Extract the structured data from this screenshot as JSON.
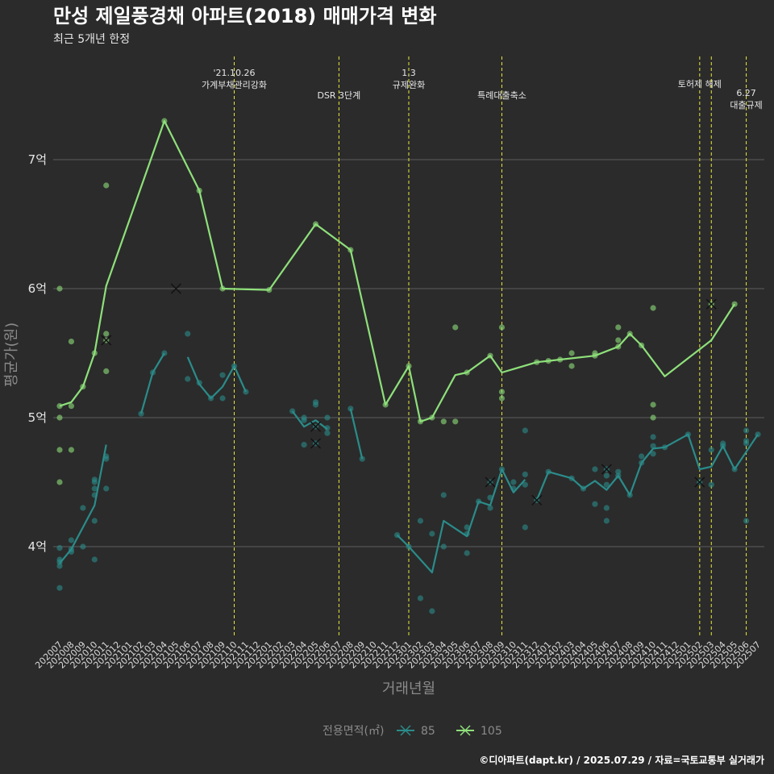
{
  "chart_data": {
    "type": "line",
    "title": "만성 제일풍경채 아파트(2018) 매매가격 변화",
    "subtitle": "최근 5개년 한정",
    "xlabel": "거래년월",
    "ylabel": "평균가(원)",
    "ylim": [
      3.3,
      7.8
    ],
    "yticks": [
      4,
      5,
      6,
      7
    ],
    "ytick_labels": [
      "4억",
      "5억",
      "6억",
      "7억"
    ],
    "categories": [
      "202007",
      "202008",
      "202009",
      "202010",
      "202011",
      "202012",
      "202101",
      "202102",
      "202103",
      "202104",
      "202105",
      "202106",
      "202107",
      "202108",
      "202109",
      "202110",
      "202111",
      "202112",
      "202201",
      "202202",
      "202203",
      "202204",
      "202205",
      "202206",
      "202207",
      "202208",
      "202209",
      "202210",
      "202211",
      "202212",
      "202301",
      "202302",
      "202303",
      "202304",
      "202305",
      "202306",
      "202307",
      "202308",
      "202309",
      "202310",
      "202311",
      "202312",
      "202401",
      "202402",
      "202403",
      "202404",
      "202405",
      "202406",
      "202407",
      "202408",
      "202409",
      "202410",
      "202411",
      "202412",
      "202501",
      "202502",
      "202503",
      "202504",
      "202505",
      "202506",
      "202507"
    ],
    "grid": true,
    "legend_title": "전용면적(㎡)",
    "legend_position": "bottom",
    "series": [
      {
        "name": "85",
        "color": "#2a8c8a",
        "segments": [
          [
            [
              "202007",
              3.87
            ],
            [
              "202008",
              3.98
            ],
            [
              "202009",
              4.15
            ],
            [
              "202010",
              4.32
            ],
            [
              "202011",
              4.79
            ]
          ],
          [
            [
              "202102",
              5.03
            ],
            [
              "202103",
              5.35
            ],
            [
              "202104",
              5.5
            ]
          ],
          [
            [
              "202106",
              5.47
            ],
            [
              "202107",
              5.26
            ],
            [
              "202108",
              5.15
            ],
            [
              "202109",
              5.24
            ],
            [
              "202110",
              5.4
            ],
            [
              "202111",
              5.2
            ]
          ],
          [
            [
              "202203",
              5.05
            ],
            [
              "202204",
              4.93
            ],
            [
              "202205",
              4.98
            ],
            [
              "202206",
              4.91
            ]
          ],
          [
            [
              "202208",
              5.07
            ],
            [
              "202209",
              4.68
            ]
          ],
          [
            [
              "202212",
              4.09
            ],
            [
              "202301",
              4.0
            ],
            [
              "202303",
              3.8
            ],
            [
              "202304",
              4.2
            ],
            [
              "202306",
              4.08
            ],
            [
              "202307",
              4.35
            ],
            [
              "202308",
              4.32
            ],
            [
              "202309",
              4.6
            ],
            [
              "202310",
              4.42
            ],
            [
              "202311",
              4.52
            ]
          ],
          [
            [
              "202312",
              4.36
            ],
            [
              "202401",
              4.58
            ],
            [
              "202403",
              4.53
            ],
            [
              "202404",
              4.45
            ],
            [
              "202405",
              4.51
            ],
            [
              "202406",
              4.44
            ],
            [
              "202407",
              4.55
            ],
            [
              "202408",
              4.4
            ],
            [
              "202409",
              4.65
            ],
            [
              "202410",
              4.76
            ],
            [
              "202411",
              4.77
            ],
            [
              "202501",
              4.87
            ],
            [
              "202502",
              4.6
            ],
            [
              "202503",
              4.62
            ],
            [
              "202504",
              4.78
            ],
            [
              "202505",
              4.6
            ],
            [
              "202507",
              4.87
            ]
          ]
        ],
        "points": [
          [
            "202007",
            3.85
          ],
          [
            "202007",
            3.88
          ],
          [
            "202007",
            3.9
          ],
          [
            "202007",
            3.68
          ],
          [
            "202007",
            3.99
          ],
          [
            "202008",
            3.96
          ],
          [
            "202008",
            3.98
          ],
          [
            "202008",
            4.05
          ],
          [
            "202009",
            4.3
          ],
          [
            "202009",
            4.0
          ],
          [
            "202010",
            4.45
          ],
          [
            "202010",
            4.5
          ],
          [
            "202010",
            4.4
          ],
          [
            "202010",
            4.52
          ],
          [
            "202010",
            4.2
          ],
          [
            "202010",
            3.9
          ],
          [
            "202011",
            4.68
          ],
          [
            "202011",
            4.45
          ],
          [
            "202011",
            4.7
          ],
          [
            "202102",
            5.03
          ],
          [
            "202103",
            5.35
          ],
          [
            "202104",
            5.5
          ],
          [
            "202106",
            5.65
          ],
          [
            "202106",
            5.3
          ],
          [
            "202107",
            5.27
          ],
          [
            "202108",
            5.15
          ],
          [
            "202109",
            5.15
          ],
          [
            "202109",
            5.33
          ],
          [
            "202110",
            5.4
          ],
          [
            "202111",
            5.2
          ],
          [
            "202203",
            5.05
          ],
          [
            "202204",
            4.79
          ],
          [
            "202204",
            5.0
          ],
          [
            "202204",
            4.98
          ],
          [
            "202205",
            5.1
          ],
          [
            "202205",
            5.12
          ],
          [
            "202205",
            4.8
          ],
          [
            "202205",
            4.93
          ],
          [
            "202206",
            4.88
          ],
          [
            "202206",
            5.0
          ],
          [
            "202206",
            4.92
          ],
          [
            "202208",
            5.07
          ],
          [
            "202209",
            4.68
          ],
          [
            "202212",
            4.09
          ],
          [
            "202301",
            4.0
          ],
          [
            "202302",
            3.6
          ],
          [
            "202302",
            4.2
          ],
          [
            "202303",
            3.5
          ],
          [
            "202303",
            4.1
          ],
          [
            "202304",
            4.0
          ],
          [
            "202304",
            4.4
          ],
          [
            "202306",
            4.1
          ],
          [
            "202306",
            4.15
          ],
          [
            "202306",
            3.95
          ],
          [
            "202307",
            4.35
          ],
          [
            "202308",
            4.3
          ],
          [
            "202308",
            4.38
          ],
          [
            "202308",
            4.5
          ],
          [
            "202309",
            4.6
          ],
          [
            "202310",
            4.45
          ],
          [
            "202310",
            4.5
          ],
          [
            "202311",
            4.15
          ],
          [
            "202311",
            4.9
          ],
          [
            "202311",
            4.56
          ],
          [
            "202311",
            4.48
          ],
          [
            "202312",
            4.36
          ],
          [
            "202401",
            4.58
          ],
          [
            "202403",
            4.53
          ],
          [
            "202404",
            4.45
          ],
          [
            "202405",
            4.6
          ],
          [
            "202405",
            4.33
          ],
          [
            "202406",
            4.6
          ],
          [
            "202406",
            4.3
          ],
          [
            "202406",
            4.55
          ],
          [
            "202406",
            4.2
          ],
          [
            "202406",
            4.48
          ],
          [
            "202407",
            4.58
          ],
          [
            "202407",
            4.55
          ],
          [
            "202408",
            4.4
          ],
          [
            "202409",
            4.65
          ],
          [
            "202409",
            4.7
          ],
          [
            "202410",
            4.78
          ],
          [
            "202410",
            4.72
          ],
          [
            "202410",
            4.85
          ],
          [
            "202411",
            4.77
          ],
          [
            "202501",
            4.87
          ],
          [
            "202502",
            4.5
          ],
          [
            "202503",
            4.48
          ],
          [
            "202503",
            4.75
          ],
          [
            "202504",
            4.78
          ],
          [
            "202504",
            4.8
          ],
          [
            "202505",
            4.6
          ],
          [
            "202506",
            4.2
          ],
          [
            "202506",
            4.9
          ],
          [
            "202506",
            4.8
          ],
          [
            "202506",
            4.82
          ],
          [
            "202507",
            4.87
          ]
        ],
        "x_marks": [
          [
            "202205",
            4.93
          ],
          [
            "202205",
            4.8
          ],
          [
            "202308",
            4.5
          ],
          [
            "202312",
            4.36
          ],
          [
            "202406",
            4.6
          ],
          [
            "202502",
            4.5
          ]
        ]
      },
      {
        "name": "105",
        "color": "#8ee07a",
        "segments": [
          [
            [
              "202007",
              5.09
            ],
            [
              "202008",
              5.12
            ],
            [
              "202009",
              5.24
            ],
            [
              "202010",
              5.5
            ],
            [
              "202011",
              6.02
            ],
            [
              "202104",
              7.3
            ],
            [
              "202107",
              6.76
            ],
            [
              "202109",
              6.0
            ],
            [
              "202201",
              5.99
            ],
            [
              "202205",
              6.5
            ],
            [
              "202208",
              6.3
            ],
            [
              "202211",
              5.1
            ],
            [
              "202301",
              5.4
            ],
            [
              "202302",
              4.97
            ],
            [
              "202303",
              5.0
            ],
            [
              "202305",
              5.33
            ],
            [
              "202306",
              5.35
            ],
            [
              "202308",
              5.48
            ],
            [
              "202309",
              5.35
            ],
            [
              "202312",
              5.43
            ],
            [
              "202401",
              5.44
            ],
            [
              "202402",
              5.45
            ],
            [
              "202405",
              5.48
            ],
            [
              "202407",
              5.55
            ],
            [
              "202408",
              5.65
            ],
            [
              "202409",
              5.56
            ],
            [
              "202411",
              5.32
            ],
            [
              "202503",
              5.6
            ],
            [
              "202505",
              5.88
            ]
          ]
        ],
        "points": [
          [
            "202007",
            6.0
          ],
          [
            "202007",
            5.09
          ],
          [
            "202007",
            5.0
          ],
          [
            "202007",
            4.75
          ],
          [
            "202007",
            4.5
          ],
          [
            "202008",
            5.59
          ],
          [
            "202008",
            5.09
          ],
          [
            "202008",
            4.75
          ],
          [
            "202009",
            5.24
          ],
          [
            "202010",
            5.5
          ],
          [
            "202011",
            6.8
          ],
          [
            "202011",
            5.65
          ],
          [
            "202011",
            5.6
          ],
          [
            "202011",
            5.36
          ],
          [
            "202104",
            7.3
          ],
          [
            "202107",
            6.76
          ],
          [
            "202109",
            6.0
          ],
          [
            "202201",
            5.99
          ],
          [
            "202205",
            6.5
          ],
          [
            "202208",
            6.3
          ],
          [
            "202211",
            5.1
          ],
          [
            "202301",
            5.4
          ],
          [
            "202302",
            4.97
          ],
          [
            "202303",
            5.0
          ],
          [
            "202304",
            4.97
          ],
          [
            "202305",
            5.7
          ],
          [
            "202305",
            4.97
          ],
          [
            "202306",
            5.35
          ],
          [
            "202308",
            5.48
          ],
          [
            "202309",
            5.7
          ],
          [
            "202309",
            5.2
          ],
          [
            "202309",
            5.15
          ],
          [
            "202312",
            5.43
          ],
          [
            "202401",
            5.44
          ],
          [
            "202402",
            5.45
          ],
          [
            "202403",
            5.5
          ],
          [
            "202403",
            5.4
          ],
          [
            "202405",
            5.48
          ],
          [
            "202405",
            5.5
          ],
          [
            "202407",
            5.55
          ],
          [
            "202407",
            5.6
          ],
          [
            "202407",
            5.7
          ],
          [
            "202408",
            5.65
          ],
          [
            "202409",
            5.56
          ],
          [
            "202410",
            5.85
          ],
          [
            "202410",
            5.1
          ],
          [
            "202410",
            5.0
          ],
          [
            "202503",
            5.88
          ],
          [
            "202505",
            5.88
          ]
        ],
        "x_marks": [
          [
            "202011",
            5.6
          ],
          [
            "202105",
            6.0
          ],
          [
            "202503",
            5.88
          ]
        ]
      }
    ],
    "annotations": [
      {
        "x": "202110",
        "lines": [
          "'21.10.26",
          "가계부채관리강화"
        ],
        "level": 0
      },
      {
        "x": "202207",
        "lines": [
          "DSR 3단계"
        ],
        "level": 2
      },
      {
        "x": "202301",
        "lines": [
          "1.3",
          "규제완화"
        ],
        "level": 0
      },
      {
        "x": "202309",
        "lines": [
          "특례대출축소"
        ],
        "level": 2
      },
      {
        "x": "202502",
        "lines": [
          "토허제 해제"
        ],
        "level": 1
      },
      {
        "x": "202503",
        "lines": [],
        "level": 0
      },
      {
        "x": "202506",
        "lines": [
          "6.27",
          "대출규제"
        ],
        "level": 1.8
      }
    ]
  },
  "caption": "©디아파트(dapt.kr) / 2025.07.29 / 자료=국토교통부 실거래가"
}
